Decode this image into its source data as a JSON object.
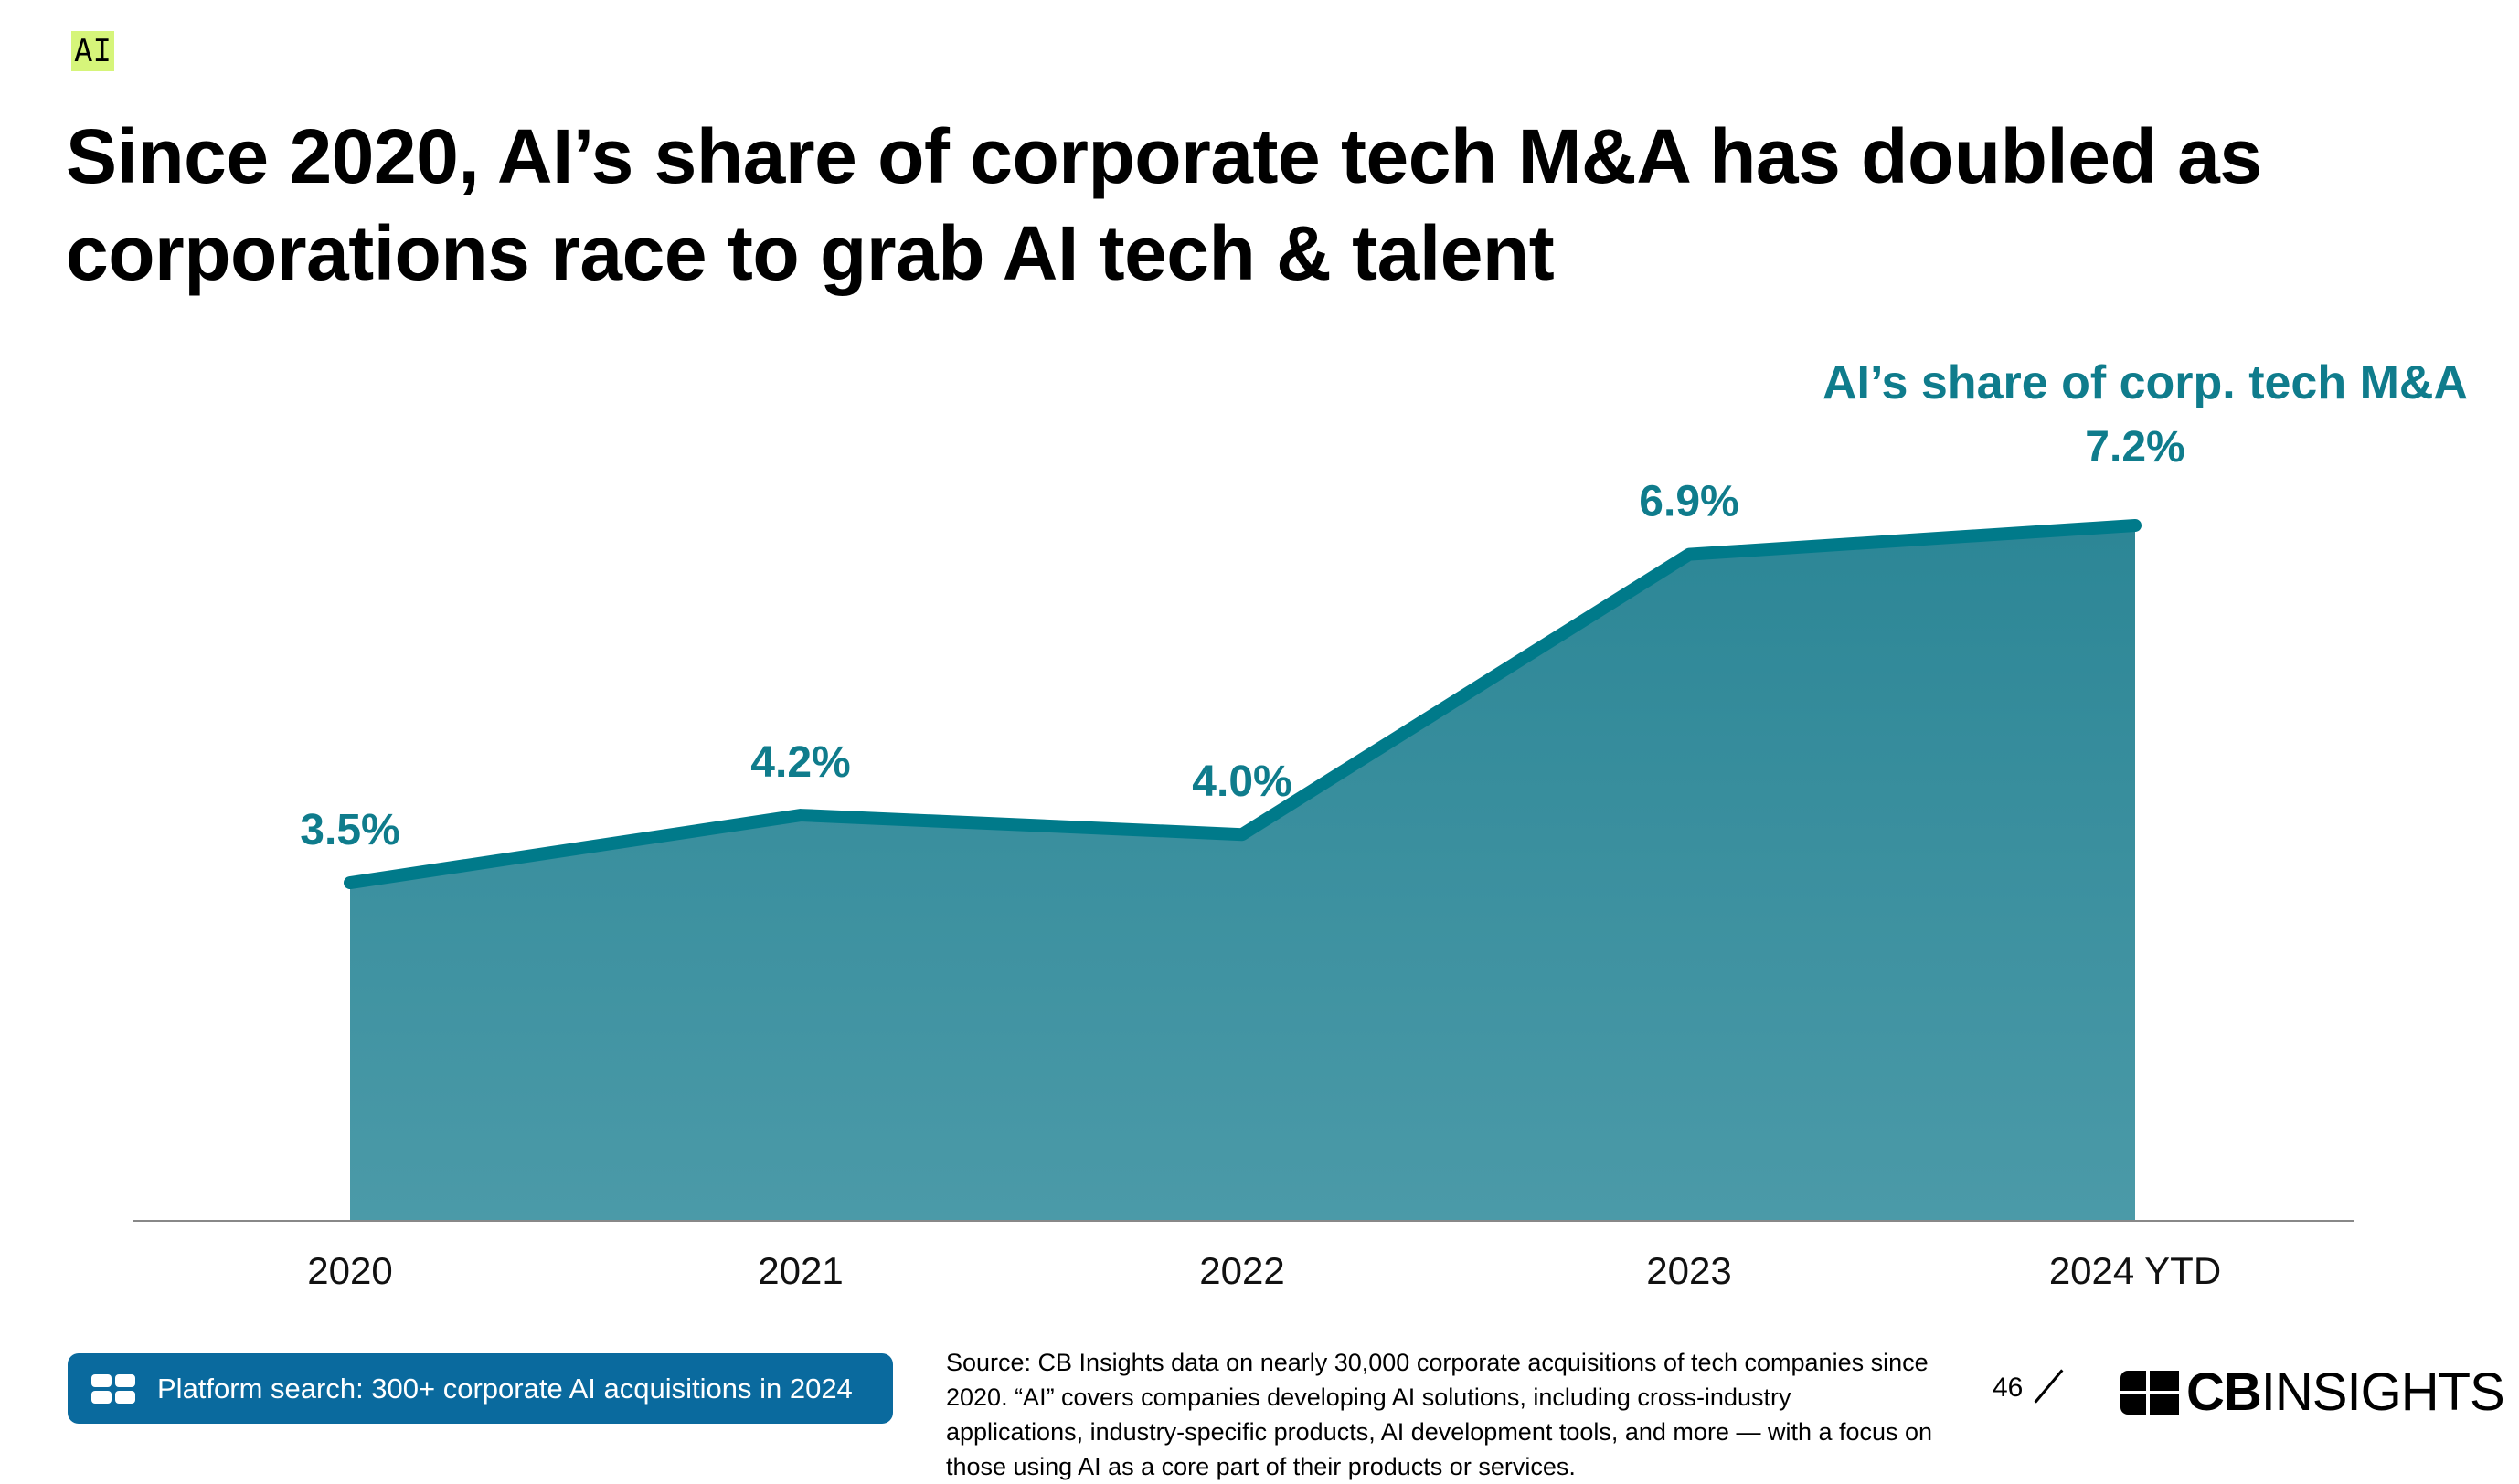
{
  "tag": "AI",
  "title_line1": "Since 2020, AI’s share of corporate tech M&A has doubled as",
  "title_line2": "corporations race to grab AI tech & talent",
  "chart_data": {
    "type": "area",
    "categories": [
      "2020",
      "2021",
      "2022",
      "2023",
      "2024 YTD"
    ],
    "values": [
      3.5,
      4.2,
      4.0,
      6.9,
      7.2
    ],
    "data_labels": [
      "3.5%",
      "4.2%",
      "4.0%",
      "6.9%",
      "7.2%"
    ],
    "series": [
      {
        "name": "AI’s share of corp. tech M&A",
        "values": [
          3.5,
          4.2,
          4.0,
          6.9,
          7.2
        ]
      }
    ],
    "unit": "%",
    "ylim": [
      0,
      12.6
    ],
    "grid": false,
    "legend": "top-right",
    "colors": {
      "line": "#007a8a",
      "fill_top": "#2c8696",
      "fill_bottom": "#4b9aa8",
      "label": "#0f7c8c",
      "axis": "#888888"
    }
  },
  "footer": {
    "button_label": "Platform search: 300+ corporate AI acquisitions in 2024",
    "button_icon": "platform-grid-icon",
    "button_color": "#0a6a9e",
    "source": "Source: CB Insights data on nearly 30,000 corporate acquisitions of tech companies since 2020. “AI” covers companies developing AI solutions, including cross-industry applications, industry-specific products, AI development tools, and more — with a focus on those using AI as a core part of their products or services.",
    "page_number": "46",
    "logo_bold": "CB",
    "logo_light": "INSIGHTS"
  }
}
